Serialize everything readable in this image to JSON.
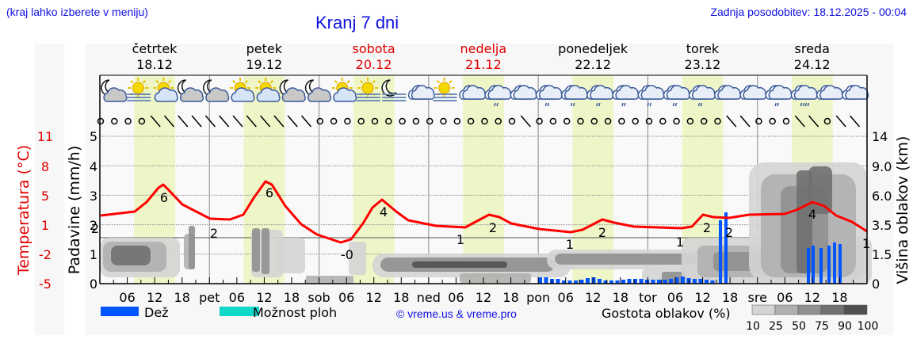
{
  "header": {
    "hint": "(kraj lahko izberete v meniju)",
    "title": "Kranj 7 dni",
    "updated": "Zadnja posodobitev: 18.12.2025 - 00:04"
  },
  "days": [
    {
      "name": "četrtek",
      "date": "18.12",
      "weekend": false
    },
    {
      "name": "petek",
      "date": "19.12",
      "weekend": false
    },
    {
      "name": "sobota",
      "date": "20.12",
      "weekend": true
    },
    {
      "name": "nedelja",
      "date": "21.12",
      "weekend": true
    },
    {
      "name": "ponedeljek",
      "date": "22.12",
      "weekend": false
    },
    {
      "name": "torek",
      "date": "23.12",
      "weekend": false
    },
    {
      "name": "sreda",
      "date": "24.12",
      "weekend": false
    }
  ],
  "axes": {
    "left_temp_label": "Temperatura (°C)",
    "left_temp_ticks": [
      "11",
      "8",
      "5",
      "1",
      "-2",
      "-5"
    ],
    "left_precip_label": "Padavine (mm/h)",
    "left_precip_ticks": [
      "5",
      "4",
      "3",
      "2",
      "1",
      "0"
    ],
    "right_label": "Višina oblakov (km)",
    "right_ticks": [
      "14",
      "9.0",
      "6.0",
      "3.5",
      "1.5",
      "0"
    ],
    "x_ticks": [
      "06",
      "12",
      "18",
      "pet",
      "06",
      "12",
      "18",
      "sob",
      "06",
      "12",
      "18",
      "ned",
      "06",
      "12",
      "18",
      "pon",
      "06",
      "12",
      "18",
      "tor",
      "06",
      "12",
      "18",
      "sre",
      "06",
      "12",
      "18"
    ]
  },
  "legend": {
    "rain": "Dež",
    "rain_color": "#0055ff",
    "showers": "Možnost ploh",
    "showers_color": "#10d8c8",
    "copyright": "© vreme.us & vreme.pro",
    "cloud_density_label": "Gostota oblakov (%)",
    "cloud_density_ticks": [
      "10",
      "25",
      "50",
      "75",
      "90",
      "100"
    ],
    "cloud_density_colors": [
      "#d4d4d4",
      "#b0b0b0",
      "#909090",
      "#707070",
      "#505050"
    ]
  },
  "colors": {
    "temperature_line": "#ff0000",
    "daylight_band": "#eef6c8",
    "weekend_text": "#e00000",
    "header_text": "#1010e0"
  },
  "weather_icons": [
    "moon-cloud",
    "sun-fog",
    "sun-cloud",
    "moon-cloud",
    "moon-cloud",
    "sun-cloud",
    "sun-small-cloud",
    "moon-small-cloud",
    "moon-small-cloud",
    "sun-cloud",
    "sun-fog",
    "moon-fog",
    "cloud",
    "sun-fog",
    "cloud",
    "cloud-rain",
    "cloud",
    "cloud-rain",
    "cloud-rain",
    "cloud-rain",
    "cloud-rain",
    "cloud-rain",
    "cloud-rain",
    "cloud-rain",
    "cloud",
    "cloud",
    "cloud-rain",
    "cloud-rain-heavy",
    "cloud",
    "cloud"
  ],
  "chart_data": {
    "type": "line",
    "title": "Kranj 7 dni",
    "x": [
      "18.12 00",
      "18.12 06",
      "18.12 12",
      "18.12 18",
      "19.12 00",
      "19.12 06",
      "19.12 12",
      "19.12 18",
      "20.12 00",
      "20.12 06",
      "20.12 12",
      "20.12 18",
      "21.12 00",
      "21.12 06",
      "21.12 12",
      "21.12 18",
      "22.12 00",
      "22.12 06",
      "22.12 12",
      "22.12 18",
      "23.12 00",
      "23.12 06",
      "23.12 12",
      "23.12 18",
      "24.12 00",
      "24.12 06",
      "24.12 12",
      "24.12 18",
      "25.12 00"
    ],
    "series": [
      {
        "name": "Temperatura (°C)",
        "values": [
          2,
          2,
          6,
          4,
          2,
          2,
          6,
          3,
          1,
          0,
          4,
          2,
          2,
          1,
          2,
          1,
          1,
          1,
          2,
          1,
          1,
          1,
          2,
          2,
          2,
          2,
          4,
          3,
          1
        ]
      },
      {
        "name": "Dež (mm/h)",
        "values": [
          0,
          0,
          0,
          0,
          0,
          0,
          0,
          0,
          0,
          0,
          0,
          0,
          0,
          0,
          0,
          0,
          0.1,
          0.2,
          0.2,
          0.1,
          0.1,
          0.2,
          0.1,
          2.3,
          0,
          0,
          1.3,
          1.4,
          0
        ]
      }
    ],
    "temperature_labels": [
      {
        "day": "18.12",
        "time": "00",
        "value": 2
      },
      {
        "day": "18.12",
        "time": "12",
        "value": 6
      },
      {
        "day": "19.12",
        "time": "00",
        "value": 2
      },
      {
        "day": "19.12",
        "time": "12",
        "value": 6
      },
      {
        "day": "20.12",
        "time": "06",
        "value": 0
      },
      {
        "day": "20.12",
        "time": "14",
        "value": 4
      },
      {
        "day": "21.12",
        "time": "06",
        "value": 1
      },
      {
        "day": "21.12",
        "time": "14",
        "value": 2
      },
      {
        "day": "22.12",
        "time": "06",
        "value": 1
      },
      {
        "day": "22.12",
        "time": "14",
        "value": 2
      },
      {
        "day": "23.12",
        "time": "06",
        "value": 1
      },
      {
        "day": "23.12",
        "time": "14",
        "value": 2
      },
      {
        "day": "23.12",
        "time": "16",
        "value": 2
      },
      {
        "day": "24.12",
        "time": "14",
        "value": 4
      },
      {
        "day": "25.12",
        "time": "00",
        "value": 1
      }
    ],
    "xlabel": "",
    "ylabel": "Padavine (mm/h)",
    "ylim": [
      0,
      5
    ],
    "y2label": "Višina oblakov (km)",
    "y2_ticks": [
      0,
      1.5,
      3.5,
      6.0,
      9.0,
      14
    ],
    "y_temp_ticks": [
      -5,
      -2,
      1,
      5,
      8,
      11
    ],
    "grid": true,
    "legend_position": "bottom"
  }
}
